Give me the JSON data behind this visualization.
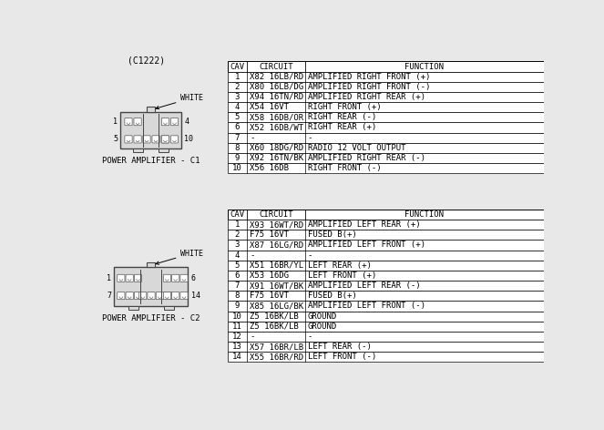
{
  "title": "(C1222)",
  "bg_color": "#e8e8e8",
  "table_bg": "#ffffff",
  "table1_title": "POWER AMPLIFIER - C1",
  "table2_title": "POWER AMPLIFIER - C2",
  "connector_label": "WHITE",
  "table1_headers": [
    "CAV",
    "CIRCUIT",
    "FUNCTION"
  ],
  "table1_rows": [
    [
      "1",
      "X82 16LB/RD",
      "AMPLIFIED RIGHT FRONT (+)"
    ],
    [
      "2",
      "X80 16LB/DG",
      "AMPLIFIED RIGHT FRONT (-)"
    ],
    [
      "3",
      "X94 16TN/RD",
      "AMPLIFIED RIGHT REAR (+)"
    ],
    [
      "4",
      "X54 16VT",
      "RIGHT FRONT (+)"
    ],
    [
      "5",
      "X58 16DB/OR",
      "RIGHT REAR (-)"
    ],
    [
      "6",
      "X52 16DB/WT",
      "RIGHT REAR (+)"
    ],
    [
      "7",
      "-",
      "-"
    ],
    [
      "8",
      "X60 18DG/RD",
      "RADIO 12 VOLT OUTPUT"
    ],
    [
      "9",
      "X92 16TN/BK",
      "AMPLIFIED RIGHT REAR (-)"
    ],
    [
      "10",
      "X56 16DB",
      "RIGHT FRONT (-)"
    ]
  ],
  "table2_headers": [
    "CAV",
    "CIRCUIT",
    "FUNCTION"
  ],
  "table2_rows": [
    [
      "1",
      "X93 16WT/RD",
      "AMPLIFIED LEFT REAR (+)"
    ],
    [
      "2",
      "F75 16VT",
      "FUSED B(+)"
    ],
    [
      "3",
      "X87 16LG/RD",
      "AMPLIFIED LEFT FRONT (+)"
    ],
    [
      "4",
      "-",
      "-"
    ],
    [
      "5",
      "X51 16BR/YL",
      "LEFT REAR (+)"
    ],
    [
      "6",
      "X53 16DG",
      "LEFT FRONT (+)"
    ],
    [
      "7",
      "X91 16WT/BK",
      "AMPLIFIED LEFT REAR (-)"
    ],
    [
      "8",
      "F75 16VT",
      "FUSED B(+)"
    ],
    [
      "9",
      "X85 16LG/BK",
      "AMPLIFIED LEFT FRONT (-)"
    ],
    [
      "10",
      "Z5 16BK/LB",
      "GROUND"
    ],
    [
      "11",
      "Z5 16BK/LB",
      "GROUND"
    ],
    [
      "12",
      "-",
      "-"
    ],
    [
      "13",
      "X57 16BR/LB",
      "LEFT REAR (-)"
    ],
    [
      "14",
      "X55 16BR/RD",
      "LEFT FRONT (-)"
    ]
  ],
  "text_color": "#000000",
  "line_color": "#000000",
  "conn_fill": "#d8d8d8",
  "conn_edge": "#444444",
  "pin_fill": "#ffffff",
  "pin_edge": "#555555"
}
